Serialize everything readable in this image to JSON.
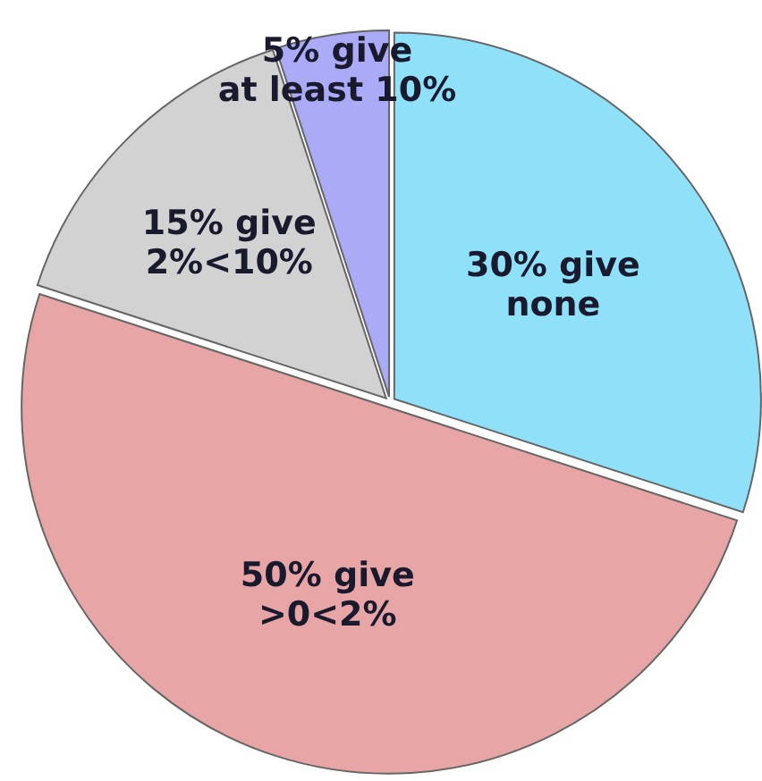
{
  "chart_data": {
    "type": "pie",
    "categories": [
      "30% give none",
      "50% give >0<2%",
      "15% give 2%<10%",
      "5% give at least 10%"
    ],
    "values": [
      30,
      50,
      15,
      5
    ],
    "colors": [
      "#8fe1f9",
      "#e8a5a5",
      "#d2d2d2",
      "#aaaaf6"
    ]
  }
}
